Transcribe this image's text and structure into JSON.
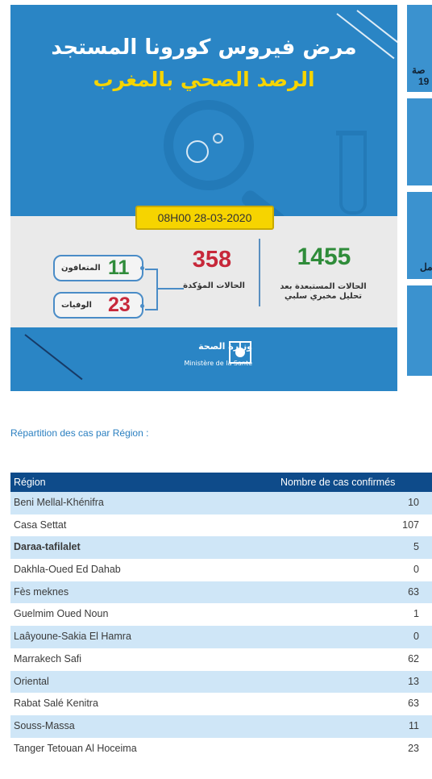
{
  "infographic": {
    "title_line1": "مرض فيروس كورونا المستجد",
    "title_line2": "الرصد الصحي بالمغرب",
    "date_time": "08H00  28-03-2020",
    "excluded_count": "1455",
    "excluded_label_line1": "الحالات المستبعدة بعد",
    "excluded_label_line2": "تحليل مخبري سلبي",
    "confirmed_count": "358",
    "confirmed_label": "الحالات المؤكدة",
    "recovered_count": "11",
    "recovered_label": "المتعافون",
    "deaths_count": "23",
    "deaths_label": "الوفيات",
    "ministry_ar": "وزارة الصحة",
    "ministry_fr": "Ministère de la Santé",
    "colors": {
      "background": "#2a85c5",
      "title_yellow": "#f6d400",
      "green": "#2f8c3a",
      "red": "#c7283a"
    }
  },
  "side_cards": {
    "card1_text_top": "صة",
    "card1_text_bottom": "19",
    "card3_text": "مل"
  },
  "section": {
    "title": "Répartition des cas par Région :"
  },
  "table": {
    "headers": [
      "Région",
      "Nombre de cas confirmés"
    ],
    "rows": [
      {
        "region": "Beni Mellal-Khénifra",
        "count": "10"
      },
      {
        "region": "Casa Settat",
        "count": "107"
      },
      {
        "region": "Daraa-tafilalet",
        "count": "5"
      },
      {
        "region": "Dakhla-Oued Ed Dahab",
        "count": "0"
      },
      {
        "region": "Fès meknes",
        "count": "63"
      },
      {
        "region": "Guelmim Oued Noun",
        "count": "1"
      },
      {
        "region": "Laâyoune-Sakia El Hamra",
        "count": "0"
      },
      {
        "region": "Marrakech Safi",
        "count": "62"
      },
      {
        "region": "Oriental",
        "count": "13"
      },
      {
        "region": "Rabat Salé Kenitra",
        "count": "63"
      },
      {
        "region": "Souss-Massa",
        "count": "11"
      },
      {
        "region": "Tanger Tetouan Al Hoceima",
        "count": "23"
      }
    ]
  }
}
